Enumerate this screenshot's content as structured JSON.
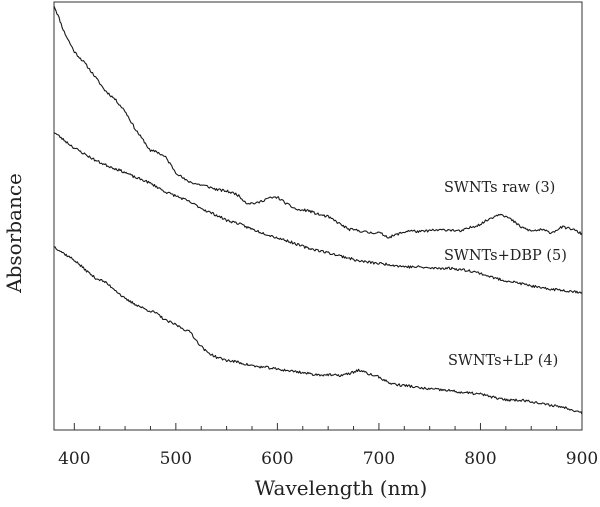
{
  "chart_data": {
    "type": "line",
    "title": "",
    "xlabel": "Wavelength (nm)",
    "ylabel": "Absorbance",
    "xlim": [
      380,
      900
    ],
    "ylim": [
      0,
      1
    ],
    "xticks": [
      400,
      500,
      600,
      700,
      800,
      900
    ],
    "grid": false,
    "legend": "inline labels at right",
    "line_color": "#1a1a1a",
    "series": [
      {
        "name": "SWNTs raw (3)",
        "x": [
          380,
          385,
          390,
          400,
          410,
          420,
          430,
          440,
          450,
          460,
          470,
          475,
          480,
          490,
          500,
          510,
          520,
          530,
          540,
          550,
          560,
          570,
          580,
          590,
          600,
          610,
          620,
          630,
          640,
          650,
          660,
          670,
          680,
          690,
          700,
          710,
          720,
          730,
          740,
          750,
          760,
          770,
          780,
          790,
          800,
          810,
          820,
          830,
          840,
          850,
          860,
          870,
          880,
          890,
          900
        ],
        "values": [
          0.992,
          0.962,
          0.93,
          0.884,
          0.858,
          0.827,
          0.794,
          0.773,
          0.745,
          0.703,
          0.67,
          0.651,
          0.652,
          0.637,
          0.602,
          0.583,
          0.575,
          0.57,
          0.562,
          0.558,
          0.551,
          0.53,
          0.53,
          0.541,
          0.544,
          0.527,
          0.514,
          0.513,
          0.504,
          0.498,
          0.484,
          0.469,
          0.466,
          0.461,
          0.461,
          0.45,
          0.459,
          0.466,
          0.463,
          0.466,
          0.467,
          0.468,
          0.464,
          0.473,
          0.481,
          0.495,
          0.506,
          0.492,
          0.474,
          0.465,
          0.468,
          0.461,
          0.474,
          0.47,
          0.458
        ]
      },
      {
        "name": "SWNTs+DBP (5)",
        "x": [
          380,
          390,
          400,
          410,
          420,
          430,
          440,
          450,
          460,
          470,
          480,
          490,
          500,
          510,
          520,
          530,
          540,
          550,
          560,
          570,
          580,
          590,
          600,
          610,
          620,
          630,
          640,
          650,
          660,
          670,
          680,
          690,
          700,
          710,
          720,
          730,
          740,
          750,
          760,
          770,
          780,
          790,
          800,
          810,
          820,
          830,
          840,
          850,
          860,
          870,
          880,
          890,
          900
        ],
        "values": [
          0.696,
          0.677,
          0.659,
          0.645,
          0.631,
          0.62,
          0.611,
          0.602,
          0.59,
          0.582,
          0.57,
          0.556,
          0.547,
          0.537,
          0.525,
          0.512,
          0.502,
          0.49,
          0.484,
          0.474,
          0.465,
          0.457,
          0.449,
          0.442,
          0.433,
          0.425,
          0.42,
          0.414,
          0.408,
          0.402,
          0.395,
          0.392,
          0.389,
          0.387,
          0.383,
          0.381,
          0.381,
          0.378,
          0.378,
          0.378,
          0.375,
          0.372,
          0.366,
          0.358,
          0.351,
          0.347,
          0.342,
          0.337,
          0.331,
          0.329,
          0.327,
          0.324,
          0.322
        ]
      },
      {
        "name": "SWNTs+LP (4)",
        "x": [
          380,
          390,
          400,
          410,
          420,
          430,
          440,
          450,
          460,
          470,
          480,
          490,
          500,
          510,
          515,
          520,
          530,
          540,
          550,
          560,
          570,
          580,
          590,
          600,
          610,
          620,
          630,
          640,
          650,
          660,
          670,
          680,
          690,
          700,
          710,
          720,
          730,
          740,
          750,
          760,
          770,
          780,
          790,
          800,
          810,
          820,
          830,
          840,
          850,
          860,
          870,
          880,
          890,
          900
        ],
        "values": [
          0.429,
          0.412,
          0.397,
          0.376,
          0.356,
          0.346,
          0.328,
          0.306,
          0.294,
          0.282,
          0.274,
          0.256,
          0.246,
          0.233,
          0.228,
          0.209,
          0.183,
          0.17,
          0.163,
          0.159,
          0.153,
          0.148,
          0.146,
          0.142,
          0.139,
          0.136,
          0.132,
          0.129,
          0.129,
          0.127,
          0.131,
          0.14,
          0.131,
          0.124,
          0.11,
          0.105,
          0.103,
          0.098,
          0.096,
          0.094,
          0.092,
          0.088,
          0.086,
          0.084,
          0.078,
          0.072,
          0.07,
          0.07,
          0.067,
          0.061,
          0.058,
          0.054,
          0.048,
          0.04
        ]
      }
    ]
  }
}
